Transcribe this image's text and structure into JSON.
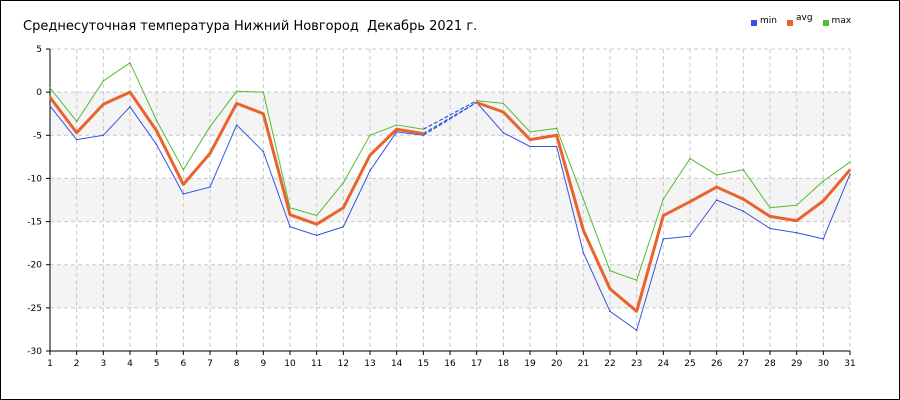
{
  "chart_data": {
    "type": "line",
    "title": "Среднесуточная температура Нижний Новгород  Декабрь 2021 г.",
    "xlabel": "",
    "ylabel": "",
    "x": [
      1,
      2,
      3,
      4,
      5,
      6,
      7,
      8,
      9,
      10,
      11,
      12,
      13,
      14,
      15,
      16,
      17,
      18,
      19,
      20,
      21,
      22,
      23,
      24,
      25,
      26,
      27,
      28,
      29,
      30,
      31
    ],
    "xlim": [
      1,
      31
    ],
    "ylim": [
      -30,
      5
    ],
    "y_ticks": [
      5,
      0,
      -5,
      -10,
      -15,
      -20,
      -25,
      -30
    ],
    "grid": true,
    "legend_position": "top-right",
    "series": [
      {
        "name": "min",
        "color": "#3355dd",
        "values": [
          -1.6,
          -5.5,
          -5.0,
          -1.7,
          -6.1,
          -11.8,
          -11.0,
          -3.8,
          -6.9,
          -15.6,
          -16.6,
          -15.6,
          -9.1,
          -4.6,
          -5.0,
          null,
          -1.2,
          -4.7,
          -6.3,
          -6.3,
          -18.6,
          -25.4,
          -27.6,
          -17.0,
          -16.7,
          -12.5,
          -13.8,
          -15.8,
          -16.3,
          -17.0,
          -9.5
        ]
      },
      {
        "name": "avg",
        "color": "#e8642e",
        "values": [
          -0.6,
          -4.7,
          -1.4,
          0.0,
          -4.5,
          -10.7,
          -7.1,
          -1.3,
          -2.5,
          -14.2,
          -15.3,
          -13.4,
          -7.3,
          -4.3,
          -4.8,
          null,
          -1.2,
          -2.3,
          -5.5,
          -5.0,
          -16.0,
          -22.8,
          -25.4,
          -14.3,
          -12.7,
          -11.0,
          -12.4,
          -14.4,
          -14.9,
          -12.6,
          -9.0
        ]
      },
      {
        "name": "max",
        "color": "#55bb33",
        "values": [
          0.5,
          -3.4,
          1.3,
          3.4,
          -3.3,
          -9.0,
          -4.0,
          0.1,
          0.0,
          -13.4,
          -14.3,
          -10.5,
          -5.0,
          -3.8,
          -4.3,
          null,
          -1.0,
          -1.3,
          -4.6,
          -4.2,
          -12.4,
          -20.7,
          -21.8,
          -12.4,
          -7.7,
          -9.6,
          -9.0,
          -13.4,
          -13.1,
          -10.3,
          -8.1
        ]
      }
    ],
    "gap_interpolation": {
      "from_day": 15,
      "to_day": 17,
      "color": "#3355dd",
      "style": "dashed"
    }
  }
}
